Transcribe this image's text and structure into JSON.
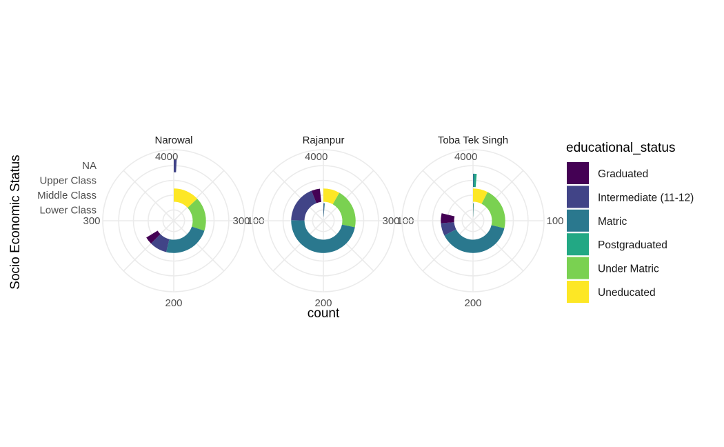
{
  "chart_data": {
    "type": "bar",
    "coord": "polar",
    "xlabel": "count",
    "ylabel": "Socio Economic Status",
    "y_categories": [
      "Lower Class",
      "Middle Class",
      "Upper Class",
      "NA"
    ],
    "theta_ticks": [
      "0",
      "100",
      "200",
      "300",
      "400"
    ],
    "theta_max": 400,
    "legend": {
      "title": "educational_status",
      "position": "right",
      "items": [
        {
          "name": "Graduated",
          "color": "#440154"
        },
        {
          "name": "Intermediate (11-12)",
          "color": "#414487"
        },
        {
          "name": "Matric",
          "color": "#2A788E"
        },
        {
          "name": "Postgraduated",
          "color": "#22A884"
        },
        {
          "name": "Under Matric",
          "color": "#7AD151"
        },
        {
          "name": "Uneducated",
          "color": "#FDE725"
        }
      ]
    },
    "facets": [
      {
        "title": "Narowal",
        "bars": [
          {
            "category": "Middle Class",
            "segments": [
              {
                "series": "Uneducated",
                "value": 52
              },
              {
                "series": "Under Matric",
                "value": 68
              },
              {
                "series": "Matric",
                "value": 95
              },
              {
                "series": "Intermediate (11-12)",
                "value": 35
              },
              {
                "series": "Graduated",
                "value": 15
              }
            ]
          },
          {
            "category": "NA",
            "segments": [
              {
                "series": "Intermediate (11-12)",
                "value": 3
              }
            ]
          }
        ]
      },
      {
        "title": "Rajanpur",
        "bars": [
          {
            "category": "Lower Class",
            "segments": [
              {
                "series": "Intermediate (11-12)",
                "value": 2
              },
              {
                "series": "Matric",
                "value": 3
              }
            ]
          },
          {
            "category": "Middle Class",
            "segments": [
              {
                "series": "Uneducated",
                "value": 33
              },
              {
                "series": "Under Matric",
                "value": 80
              },
              {
                "series": "Matric",
                "value": 188
              },
              {
                "series": "Intermediate (11-12)",
                "value": 75
              },
              {
                "series": "Graduated",
                "value": 17
              }
            ]
          }
        ]
      },
      {
        "title": "Toba Tek Singh",
        "bars": [
          {
            "category": "Lower Class",
            "segments": [
              {
                "series": "Under Matric",
                "value": 1
              },
              {
                "series": "Matric",
                "value": 2
              }
            ]
          },
          {
            "category": "Middle Class",
            "segments": [
              {
                "series": "Uneducated",
                "value": 30
              },
              {
                "series": "Under Matric",
                "value": 85
              },
              {
                "series": "Matric",
                "value": 155
              },
              {
                "series": "Intermediate (11-12)",
                "value": 25
              },
              {
                "series": "Graduated",
                "value": 20
              }
            ]
          },
          {
            "category": "Upper Class",
            "segments": [
              {
                "series": "Matric",
                "value": 2
              },
              {
                "series": "Postgraduated",
                "value": 3
              }
            ]
          }
        ]
      }
    ]
  }
}
